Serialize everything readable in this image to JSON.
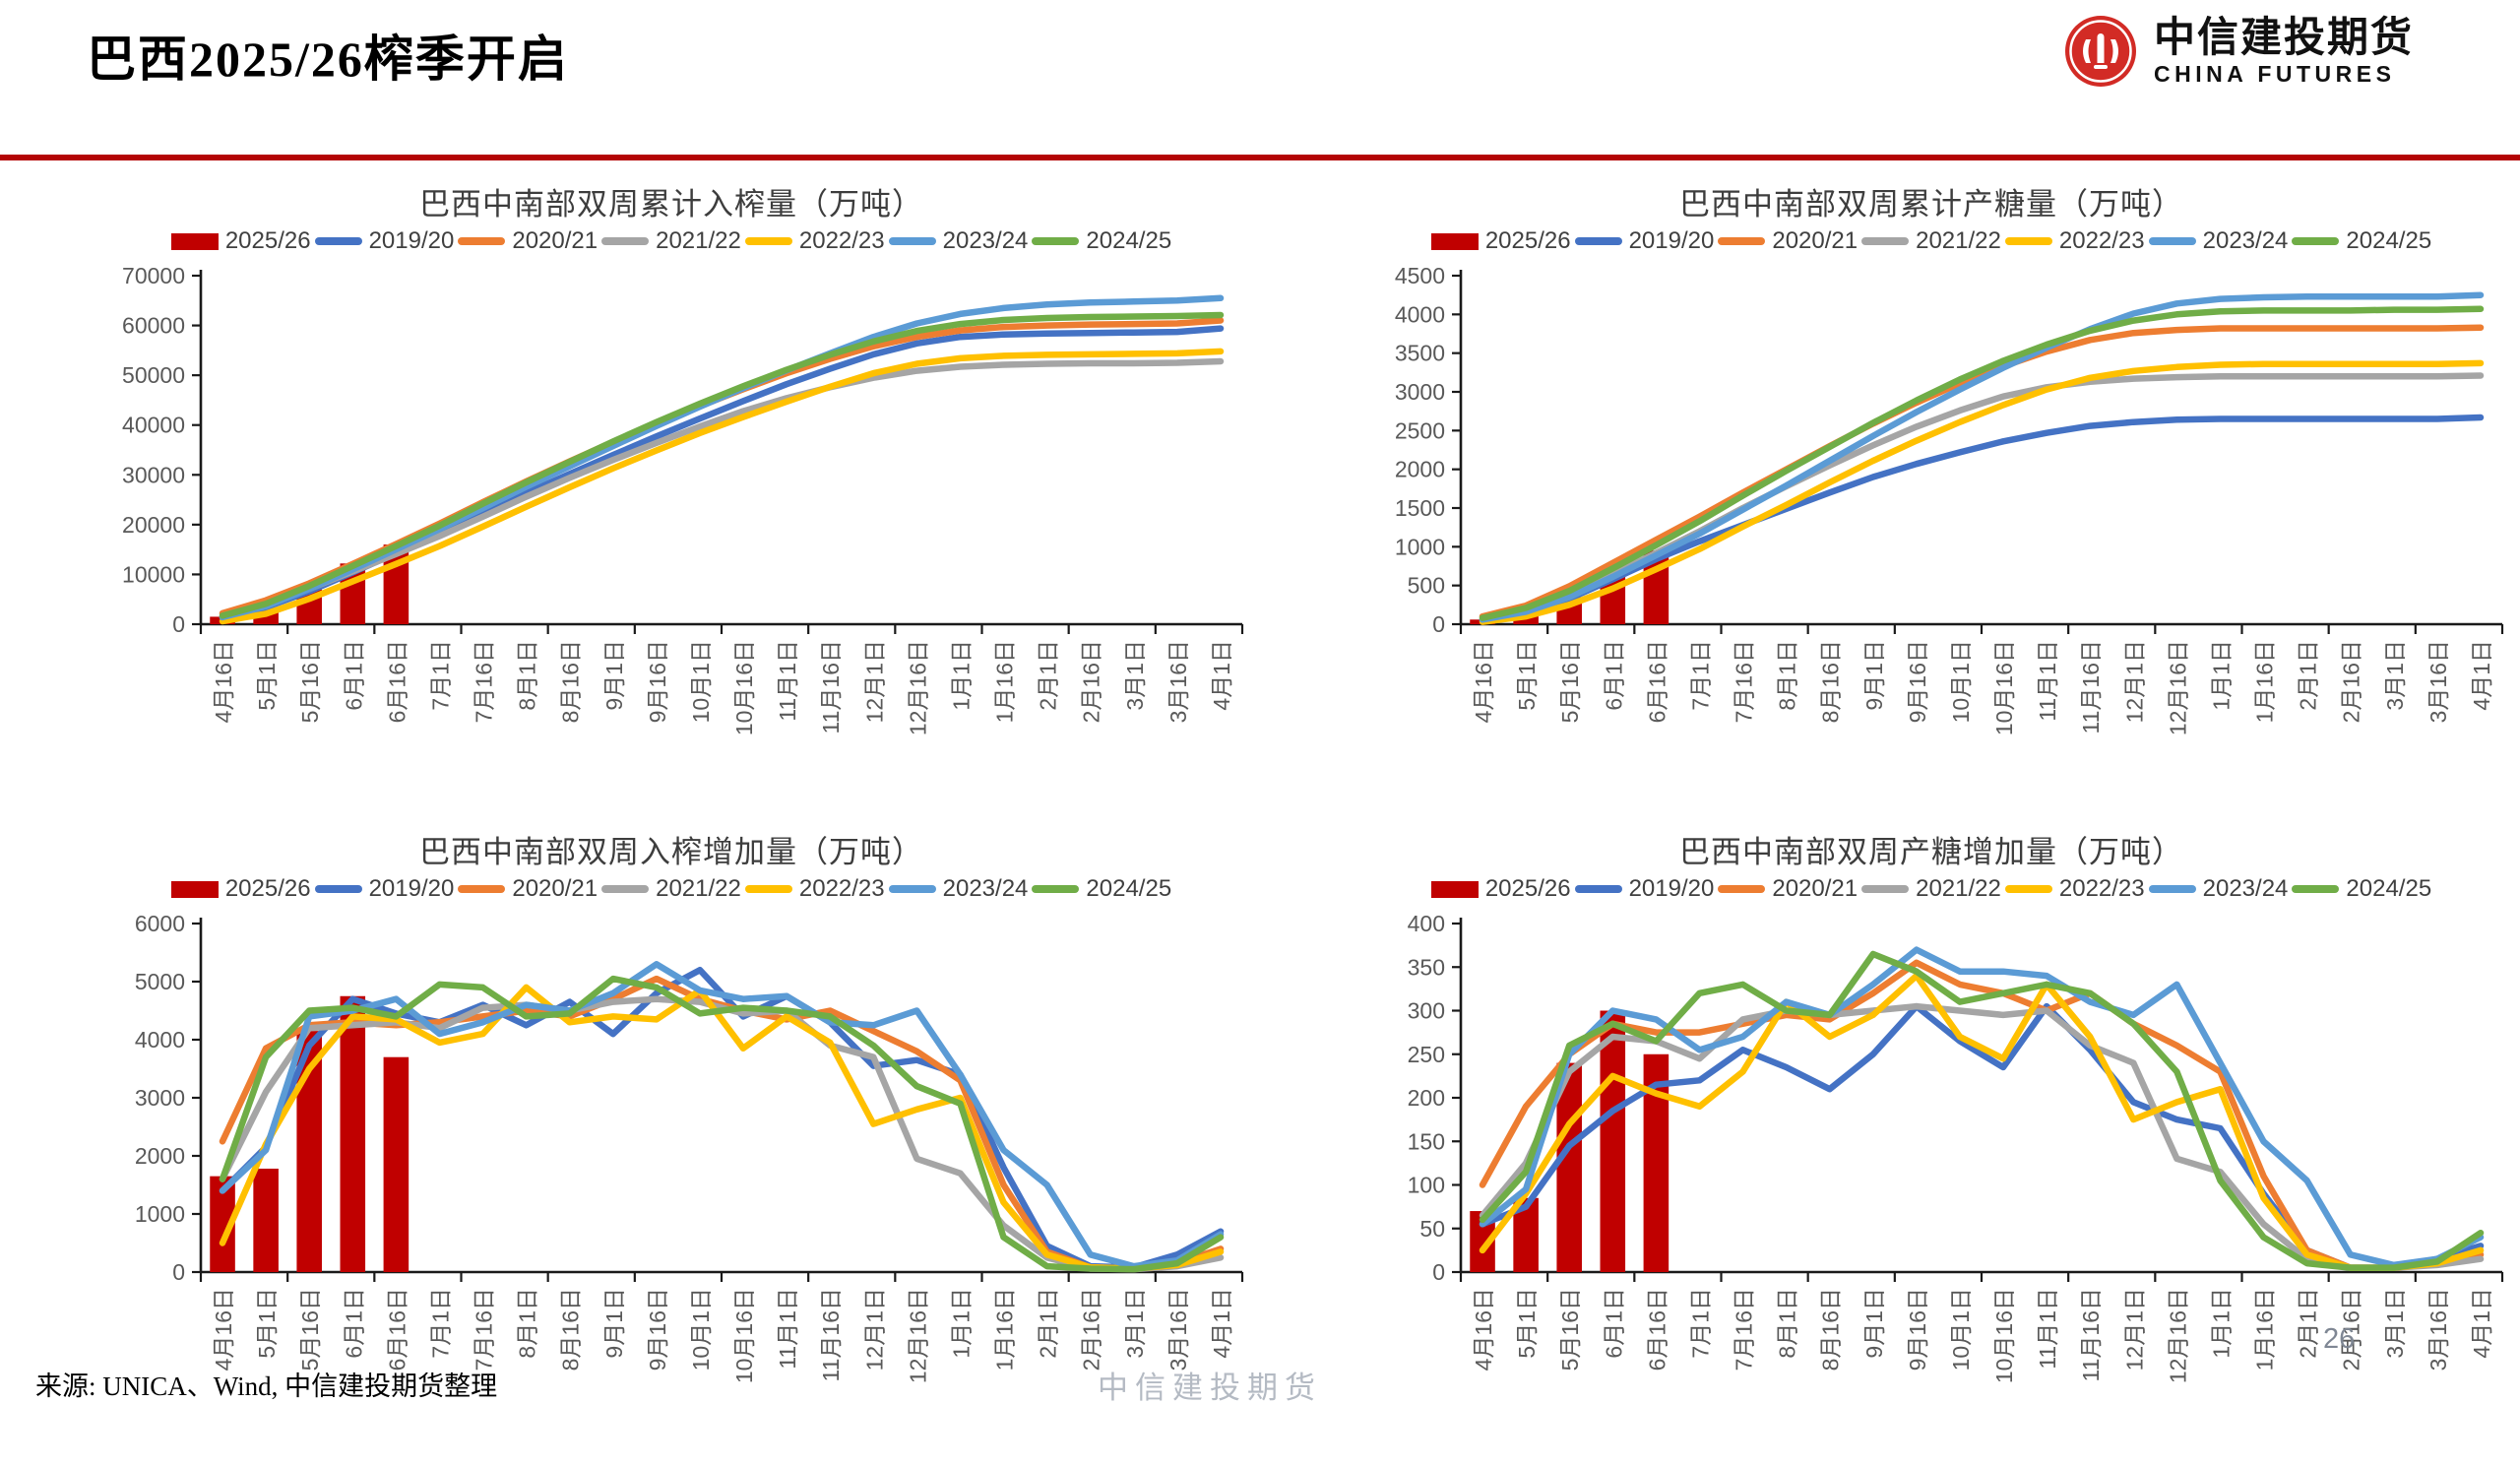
{
  "header": {
    "title": "巴西2025/26榨季开启",
    "logo": {
      "brand_cn": "中信建投期货",
      "brand_en": "CHINA FUTURES",
      "brand_color": "#d22b25"
    }
  },
  "footer": {
    "source": "来源: UNICA、Wind, 中信建投期货整理",
    "watermark": "中信建投期货",
    "page_number": "26"
  },
  "style_colors": {
    "divider_red": "#b40404",
    "bar_red": "#c00000",
    "axis_text": "#595959",
    "axis_line": "#1a1a1a"
  },
  "chart_data": [
    {
      "type": "bar+line",
      "title": "巴西中南部双周累计入榨量（万吨）",
      "ylim": [
        0,
        70000
      ],
      "ystep": 10000,
      "grid": false,
      "legend_position": "top",
      "categories": [
        "4月16日",
        "5月1日",
        "5月16日",
        "6月1日",
        "6月16日",
        "7月1日",
        "7月16日",
        "8月1日",
        "8月16日",
        "9月1日",
        "9月16日",
        "10月1日",
        "10月16日",
        "11月1日",
        "11月16日",
        "12月1日",
        "12月16日",
        "1月1日",
        "1月16日",
        "2月1日",
        "2月16日",
        "3月1日",
        "3月16日",
        "4月1日"
      ],
      "series": [
        {
          "name": "2025/26",
          "type": "bar",
          "color": "#c00000",
          "values": [
            1500,
            2900,
            7000,
            12200,
            16000
          ]
        },
        {
          "name": "2019/20",
          "type": "line",
          "color": "#4472c4",
          "values": [
            1400,
            3400,
            6600,
            10400,
            14300,
            18300,
            22300,
            26300,
            30200,
            34000,
            37700,
            41300,
            44800,
            48200,
            51300,
            54200,
            56400,
            57700,
            58200,
            58400,
            58500,
            58600,
            58700,
            59400
          ]
        },
        {
          "name": "2020/21",
          "type": "line",
          "color": "#ed7d31",
          "values": [
            2200,
            4800,
            8200,
            12100,
            16100,
            20200,
            24500,
            28700,
            32700,
            36600,
            40300,
            43800,
            47200,
            50400,
            53300,
            55800,
            57700,
            59000,
            59700,
            60000,
            60200,
            60300,
            60400,
            61000
          ]
        },
        {
          "name": "2021/22",
          "type": "line",
          "color": "#a5a5a5",
          "values": [
            1600,
            3900,
            7100,
            10600,
            14100,
            17700,
            21600,
            25600,
            29400,
            33000,
            36400,
            39700,
            42800,
            45400,
            47600,
            49500,
            50900,
            51700,
            52100,
            52300,
            52400,
            52400,
            52500,
            52800
          ]
        },
        {
          "name": "2022/23",
          "type": "line",
          "color": "#ffc000",
          "values": [
            600,
            2100,
            5100,
            8600,
            12100,
            15700,
            19600,
            23600,
            27500,
            31300,
            34900,
            38400,
            41600,
            44700,
            47700,
            50400,
            52300,
            53400,
            53900,
            54100,
            54200,
            54300,
            54400,
            54800
          ]
        },
        {
          "name": "2023/24",
          "type": "line",
          "color": "#5b9bd5",
          "values": [
            1400,
            3600,
            7100,
            11000,
            15000,
            19100,
            23300,
            27600,
            31700,
            35800,
            39800,
            43700,
            47400,
            51000,
            54400,
            57700,
            60400,
            62300,
            63500,
            64200,
            64600,
            64800,
            65000,
            65500
          ]
        },
        {
          "name": "2024/25",
          "type": "line",
          "color": "#70ad47",
          "values": [
            1700,
            4100,
            7700,
            11700,
            15700,
            19800,
            24200,
            28500,
            32600,
            36700,
            40600,
            44300,
            47800,
            51100,
            54100,
            56800,
            58900,
            60300,
            61100,
            61500,
            61700,
            61800,
            61900,
            62100
          ]
        }
      ]
    },
    {
      "type": "bar+line",
      "title": "巴西中南部双周累计产糖量（万吨）",
      "ylim": [
        0,
        4500
      ],
      "ystep": 500,
      "grid": false,
      "legend_position": "top",
      "categories": [
        "4月16日",
        "5月1日",
        "5月16日",
        "6月1日",
        "6月16日",
        "7月1日",
        "7月16日",
        "8月1日",
        "8月16日",
        "9月1日",
        "9月16日",
        "10月1日",
        "10月16日",
        "11月1日",
        "11月16日",
        "12月1日",
        "12月16日",
        "1月1日",
        "1月16日",
        "2月1日",
        "2月16日",
        "3月1日",
        "3月16日",
        "4月1日"
      ],
      "series": [
        {
          "name": "2025/26",
          "type": "bar",
          "color": "#c00000",
          "values": [
            60,
            130,
            350,
            620,
            950
          ]
        },
        {
          "name": "2019/20",
          "type": "line",
          "color": "#4472c4",
          "values": [
            50,
            140,
            330,
            580,
            840,
            1070,
            1280,
            1490,
            1700,
            1900,
            2070,
            2220,
            2360,
            2470,
            2560,
            2610,
            2640,
            2650,
            2650,
            2650,
            2650,
            2650,
            2650,
            2670
          ]
        },
        {
          "name": "2020/21",
          "type": "line",
          "color": "#ed7d31",
          "values": [
            100,
            240,
            490,
            790,
            1090,
            1390,
            1700,
            2000,
            2300,
            2590,
            2860,
            3110,
            3330,
            3520,
            3670,
            3760,
            3800,
            3820,
            3820,
            3820,
            3820,
            3820,
            3820,
            3830
          ]
        },
        {
          "name": "2021/22",
          "type": "line",
          "color": "#a5a5a5",
          "values": [
            70,
            180,
            390,
            640,
            920,
            1200,
            1500,
            1780,
            2050,
            2310,
            2550,
            2760,
            2940,
            3060,
            3130,
            3170,
            3190,
            3200,
            3200,
            3200,
            3200,
            3200,
            3200,
            3210
          ]
        },
        {
          "name": "2022/23",
          "type": "line",
          "color": "#ffc000",
          "values": [
            30,
            100,
            250,
            460,
            710,
            970,
            1260,
            1540,
            1830,
            2110,
            2370,
            2610,
            2830,
            3030,
            3180,
            3270,
            3320,
            3350,
            3360,
            3360,
            3360,
            3360,
            3360,
            3370
          ]
        },
        {
          "name": "2023/24",
          "type": "line",
          "color": "#5b9bd5",
          "values": [
            60,
            160,
            350,
            610,
            890,
            1170,
            1480,
            1790,
            2110,
            2430,
            2740,
            3030,
            3310,
            3570,
            3810,
            4010,
            4140,
            4200,
            4220,
            4230,
            4230,
            4230,
            4230,
            4250
          ]
        },
        {
          "name": "2024/25",
          "type": "line",
          "color": "#70ad47",
          "values": [
            80,
            210,
            430,
            720,
            1020,
            1330,
            1660,
            1980,
            2290,
            2600,
            2890,
            3160,
            3400,
            3610,
            3790,
            3920,
            4000,
            4040,
            4050,
            4050,
            4050,
            4060,
            4060,
            4070
          ]
        }
      ]
    },
    {
      "type": "bar+line",
      "title": "巴西中南部双周入榨增加量（万吨）",
      "ylim": [
        0,
        6000
      ],
      "ystep": 1000,
      "grid": false,
      "legend_position": "top",
      "categories": [
        "4月16日",
        "5月1日",
        "5月16日",
        "6月1日",
        "6月16日",
        "7月1日",
        "7月16日",
        "8月1日",
        "8月16日",
        "9月1日",
        "9月16日",
        "10月1日",
        "10月16日",
        "11月1日",
        "11月16日",
        "12月1日",
        "12月16日",
        "1月1日",
        "1月16日",
        "2月1日",
        "2月16日",
        "3月1日",
        "3月16日",
        "4月1日"
      ],
      "series": [
        {
          "name": "2025/26",
          "type": "bar",
          "color": "#c00000",
          "values": [
            1650,
            1780,
            4150,
            4750,
            3700
          ]
        },
        {
          "name": "2019/20",
          "type": "line",
          "color": "#4472c4",
          "values": [
            1400,
            2150,
            3900,
            4700,
            4450,
            4300,
            4600,
            4250,
            4650,
            4100,
            4800,
            5200,
            4400,
            4750,
            4300,
            3550,
            3650,
            3400,
            1800,
            450,
            100,
            80,
            300,
            700
          ]
        },
        {
          "name": "2020/21",
          "type": "line",
          "color": "#ed7d31",
          "values": [
            2250,
            3850,
            4250,
            4300,
            4250,
            4300,
            4400,
            4500,
            4400,
            4700,
            5050,
            4700,
            4500,
            4350,
            4500,
            4150,
            3800,
            3300,
            1500,
            350,
            80,
            60,
            150,
            400
          ]
        },
        {
          "name": "2021/22",
          "type": "line",
          "color": "#a5a5a5",
          "values": [
            1600,
            3100,
            4200,
            4250,
            4300,
            4200,
            4550,
            4600,
            4500,
            4650,
            4700,
            4650,
            4450,
            4500,
            3900,
            3700,
            1950,
            1700,
            800,
            250,
            60,
            50,
            100,
            250
          ]
        },
        {
          "name": "2022/23",
          "type": "line",
          "color": "#ffc000",
          "values": [
            500,
            2200,
            3500,
            4400,
            4350,
            3950,
            4100,
            4900,
            4300,
            4400,
            4350,
            4850,
            3850,
            4400,
            3950,
            2550,
            2800,
            3000,
            1200,
            300,
            80,
            60,
            120,
            350
          ]
        },
        {
          "name": "2023/24",
          "type": "line",
          "color": "#5b9bd5",
          "values": [
            1400,
            2100,
            4400,
            4500,
            4700,
            4100,
            4300,
            4600,
            4500,
            4800,
            5300,
            4850,
            4700,
            4750,
            4300,
            4250,
            4500,
            3400,
            2100,
            1500,
            300,
            100,
            200,
            650
          ]
        },
        {
          "name": "2024/25",
          "type": "line",
          "color": "#70ad47",
          "values": [
            1600,
            3700,
            4500,
            4550,
            4400,
            4950,
            4900,
            4400,
            4450,
            5050,
            4900,
            4450,
            4550,
            4500,
            4400,
            3900,
            3200,
            2900,
            600,
            100,
            60,
            50,
            150,
            600
          ]
        }
      ]
    },
    {
      "type": "bar+line",
      "title": "巴西中南部双周产糖增加量（万吨）",
      "ylim": [
        0,
        400
      ],
      "ystep": 50,
      "grid": false,
      "legend_position": "top",
      "categories": [
        "4月16日",
        "5月1日",
        "5月16日",
        "6月1日",
        "6月16日",
        "7月1日",
        "7月16日",
        "8月1日",
        "8月16日",
        "9月1日",
        "9月16日",
        "10月1日",
        "10月16日",
        "11月1日",
        "11月16日",
        "12月1日",
        "12月16日",
        "1月1日",
        "1月16日",
        "2月1日",
        "2月16日",
        "3月1日",
        "3月16日",
        "4月1日"
      ],
      "series": [
        {
          "name": "2025/26",
          "type": "bar",
          "color": "#c00000",
          "values": [
            70,
            85,
            240,
            300,
            250
          ]
        },
        {
          "name": "2019/20",
          "type": "line",
          "color": "#4472c4",
          "values": [
            55,
            75,
            145,
            185,
            215,
            220,
            255,
            235,
            210,
            250,
            305,
            265,
            235,
            305,
            255,
            195,
            175,
            165,
            90,
            25,
            5,
            5,
            15,
            30
          ]
        },
        {
          "name": "2020/21",
          "type": "line",
          "color": "#ed7d31",
          "values": [
            100,
            190,
            250,
            285,
            275,
            275,
            285,
            295,
            290,
            320,
            355,
            330,
            320,
            300,
            320,
            285,
            260,
            230,
            110,
            25,
            5,
            5,
            10,
            20
          ]
        },
        {
          "name": "2021/22",
          "type": "line",
          "color": "#a5a5a5",
          "values": [
            65,
            125,
            230,
            270,
            265,
            245,
            290,
            300,
            295,
            300,
            305,
            300,
            295,
            300,
            260,
            240,
            130,
            115,
            55,
            15,
            5,
            5,
            8,
            15
          ]
        },
        {
          "name": "2022/23",
          "type": "line",
          "color": "#ffc000",
          "values": [
            25,
            90,
            170,
            225,
            205,
            190,
            230,
            310,
            270,
            295,
            340,
            270,
            245,
            330,
            270,
            175,
            195,
            210,
            85,
            20,
            5,
            5,
            10,
            25
          ]
        },
        {
          "name": "2023/24",
          "type": "line",
          "color": "#5b9bd5",
          "values": [
            55,
            95,
            250,
            300,
            290,
            255,
            270,
            310,
            295,
            330,
            370,
            345,
            345,
            340,
            310,
            295,
            330,
            240,
            150,
            105,
            20,
            8,
            15,
            40
          ]
        },
        {
          "name": "2024/25",
          "type": "line",
          "color": "#70ad47",
          "values": [
            60,
            115,
            260,
            285,
            265,
            320,
            330,
            300,
            295,
            365,
            345,
            310,
            320,
            330,
            320,
            285,
            230,
            105,
            40,
            10,
            5,
            5,
            12,
            45
          ]
        }
      ]
    }
  ]
}
